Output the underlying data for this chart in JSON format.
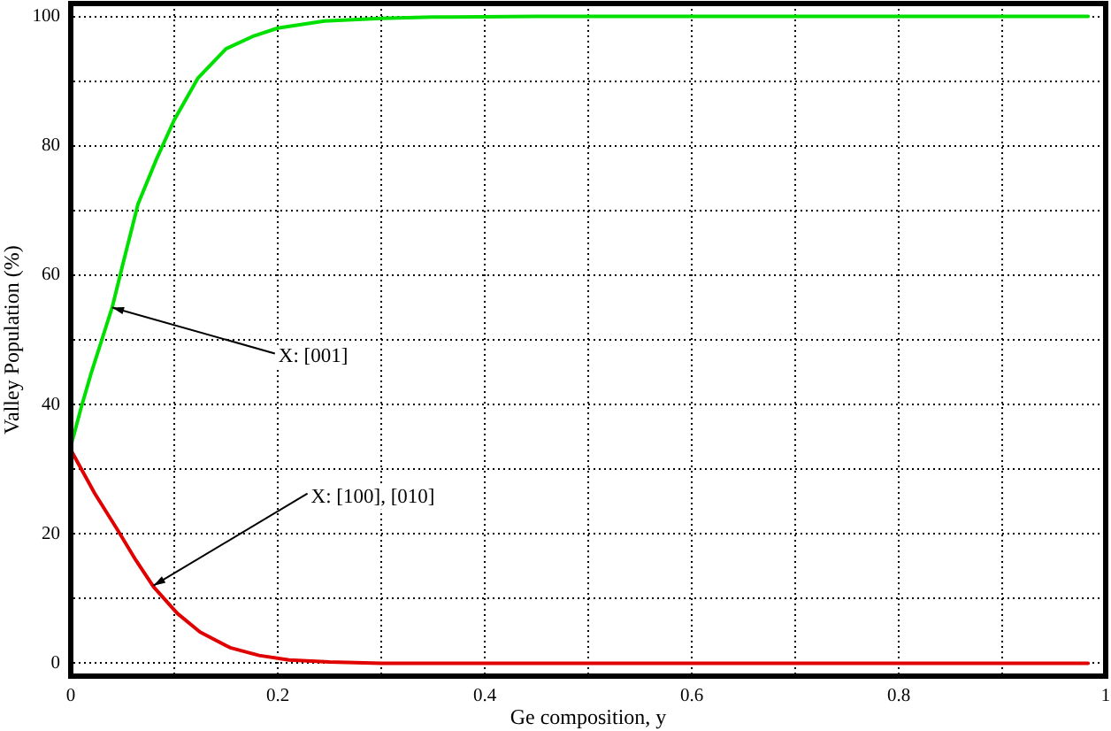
{
  "chart_data": {
    "type": "line",
    "xlabel": "Ge composition, y",
    "ylabel": "Valley Population (%)",
    "series": [
      {
        "color": "#00e000",
        "x": [
          0,
          0.01,
          0.02,
          0.03,
          0.04,
          0.05,
          0.065,
          0.083,
          0.1,
          0.123,
          0.15,
          0.177,
          0.2,
          0.245,
          0.3,
          0.35,
          0.45,
          0.6,
          0.8,
          0.983
        ],
        "values": [
          33.5,
          39.5,
          45,
          50,
          55,
          61.5,
          71,
          78,
          84,
          90.5,
          95,
          97,
          98.2,
          99.3,
          99.7,
          99.9,
          100,
          100,
          100,
          100
        ]
      },
      {
        "color": "#e00000",
        "x": [
          0,
          0.023,
          0.046,
          0.063,
          0.08,
          0.103,
          0.125,
          0.154,
          0.182,
          0.211,
          0.25,
          0.3,
          0.45,
          0.6,
          0.8,
          0.983
        ],
        "values": [
          33,
          26.3,
          20.4,
          15.9,
          11.8,
          7.7,
          4.8,
          2.4,
          1.2,
          0.5,
          0.2,
          0,
          0,
          0,
          0,
          0
        ]
      }
    ],
    "xlim": [
      0,
      1
    ],
    "xticks": [
      0,
      {
        "value": 0.1,
        "label": null
      },
      0.2,
      {
        "value": 0.3,
        "label": null
      },
      0.4,
      {
        "value": 0.5,
        "label": null
      },
      0.6,
      {
        "value": 0.7,
        "label": null
      },
      0.8,
      {
        "value": 0.9,
        "label": null
      },
      1
    ],
    "ylim": [
      -2,
      102
    ],
    "yticks": [
      0,
      {
        "value": 10,
        "label": null
      },
      20,
      {
        "value": 30,
        "label": null
      },
      40,
      {
        "value": 50,
        "label": null
      },
      60,
      {
        "value": 70,
        "label": null
      },
      80,
      {
        "value": 90,
        "label": null
      },
      100
    ],
    "annotations": [
      {
        "text": "X: [001]",
        "x": 0.04,
        "y": 55
      },
      {
        "text": "X: [100], [010]",
        "x": 0.08,
        "y": 12
      }
    ],
    "grid": true,
    "legend": false,
    "marker": "none",
    "line_style": "solid"
  }
}
